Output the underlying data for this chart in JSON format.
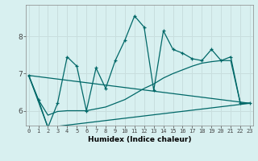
{
  "title": "",
  "xlabel": "Humidex (Indice chaleur)",
  "bg_color": "#d8f0f0",
  "grid_color": "#c8dede",
  "line_color": "#006868",
  "x_ticks": [
    0,
    1,
    2,
    3,
    4,
    5,
    6,
    7,
    8,
    9,
    10,
    11,
    12,
    13,
    14,
    15,
    16,
    17,
    18,
    19,
    20,
    21,
    22,
    23
  ],
  "y_ticks": [
    6,
    7,
    8
  ],
  "xlim": [
    -0.3,
    23.3
  ],
  "ylim": [
    5.6,
    8.85
  ],
  "line1_x": [
    0,
    1,
    2,
    3,
    4,
    5,
    6,
    7,
    8,
    9,
    10,
    11,
    12,
    13,
    14,
    15,
    16,
    17,
    18,
    19,
    20,
    21,
    22,
    23
  ],
  "line1_y": [
    6.95,
    6.3,
    5.55,
    6.2,
    7.45,
    7.2,
    6.0,
    7.15,
    6.6,
    7.35,
    7.9,
    8.55,
    8.25,
    6.55,
    8.15,
    7.65,
    7.55,
    7.4,
    7.35,
    7.65,
    7.35,
    7.45,
    6.2,
    6.2
  ],
  "line2_x": [
    0,
    1,
    2,
    3,
    4,
    5,
    6,
    7,
    8,
    9,
    10,
    11,
    12,
    13,
    14,
    15,
    16,
    17,
    18,
    19,
    20,
    21,
    22,
    23
  ],
  "line2_y": [
    6.95,
    6.3,
    5.88,
    5.98,
    6.0,
    6.0,
    6.0,
    6.05,
    6.1,
    6.2,
    6.3,
    6.45,
    6.6,
    6.72,
    6.88,
    7.0,
    7.1,
    7.2,
    7.28,
    7.32,
    7.35,
    7.35,
    6.2,
    6.2
  ],
  "line3_x": [
    0,
    2,
    23
  ],
  "line3_y": [
    6.95,
    5.55,
    6.2
  ],
  "line4_x": [
    0,
    23
  ],
  "line4_y": [
    6.95,
    6.2
  ]
}
